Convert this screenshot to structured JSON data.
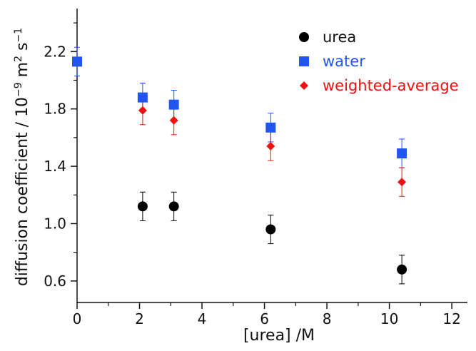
{
  "chart_data": {
    "type": "scatter",
    "xlabel": "[urea] /M",
    "ylabel_main": "diffusion coefficient / 10",
    "ylabel_exp": "−9",
    "ylabel_unit": " m",
    "ylabel_m_exp": "2",
    "ylabel_s": " s",
    "ylabel_s_exp": "−1",
    "xlim": [
      0,
      12.5
    ],
    "ylim": [
      0.45,
      2.5
    ],
    "x_ticks": [
      0,
      2,
      4,
      6,
      8,
      10,
      12
    ],
    "y_ticks": [
      0.6,
      1.0,
      1.4,
      1.8,
      2.2
    ],
    "x_tick_labels": [
      "0",
      "2",
      "4",
      "6",
      "8",
      "10",
      "12"
    ],
    "y_tick_labels": [
      "0.6",
      "1.0",
      "1.4",
      "1.8",
      "2.2"
    ],
    "grid": false,
    "legend_position": "top-right",
    "series": [
      {
        "name": "urea",
        "marker": "circle",
        "color": "#000000",
        "points": [
          {
            "x": 2.1,
            "y": 1.12,
            "err": 0.1
          },
          {
            "x": 3.1,
            "y": 1.12,
            "err": 0.1
          },
          {
            "x": 6.2,
            "y": 0.96,
            "err": 0.1
          },
          {
            "x": 10.4,
            "y": 0.68,
            "err": 0.1
          }
        ]
      },
      {
        "name": "water",
        "marker": "square",
        "color": "#2255ee",
        "points": [
          {
            "x": 0.0,
            "y": 2.13,
            "err": 0.1
          },
          {
            "x": 2.1,
            "y": 1.88,
            "err": 0.1
          },
          {
            "x": 3.1,
            "y": 1.83,
            "err": 0.1
          },
          {
            "x": 6.2,
            "y": 1.67,
            "err": 0.1
          },
          {
            "x": 10.4,
            "y": 1.49,
            "err": 0.1
          }
        ]
      },
      {
        "name": "weighted-average",
        "marker": "diamond",
        "color": "#ee1111",
        "points": [
          {
            "x": 2.1,
            "y": 1.79,
            "err": 0.1
          },
          {
            "x": 3.1,
            "y": 1.72,
            "err": 0.1
          },
          {
            "x": 6.2,
            "y": 1.54,
            "err": 0.1
          },
          {
            "x": 10.4,
            "y": 1.29,
            "err": 0.1
          }
        ]
      }
    ]
  }
}
